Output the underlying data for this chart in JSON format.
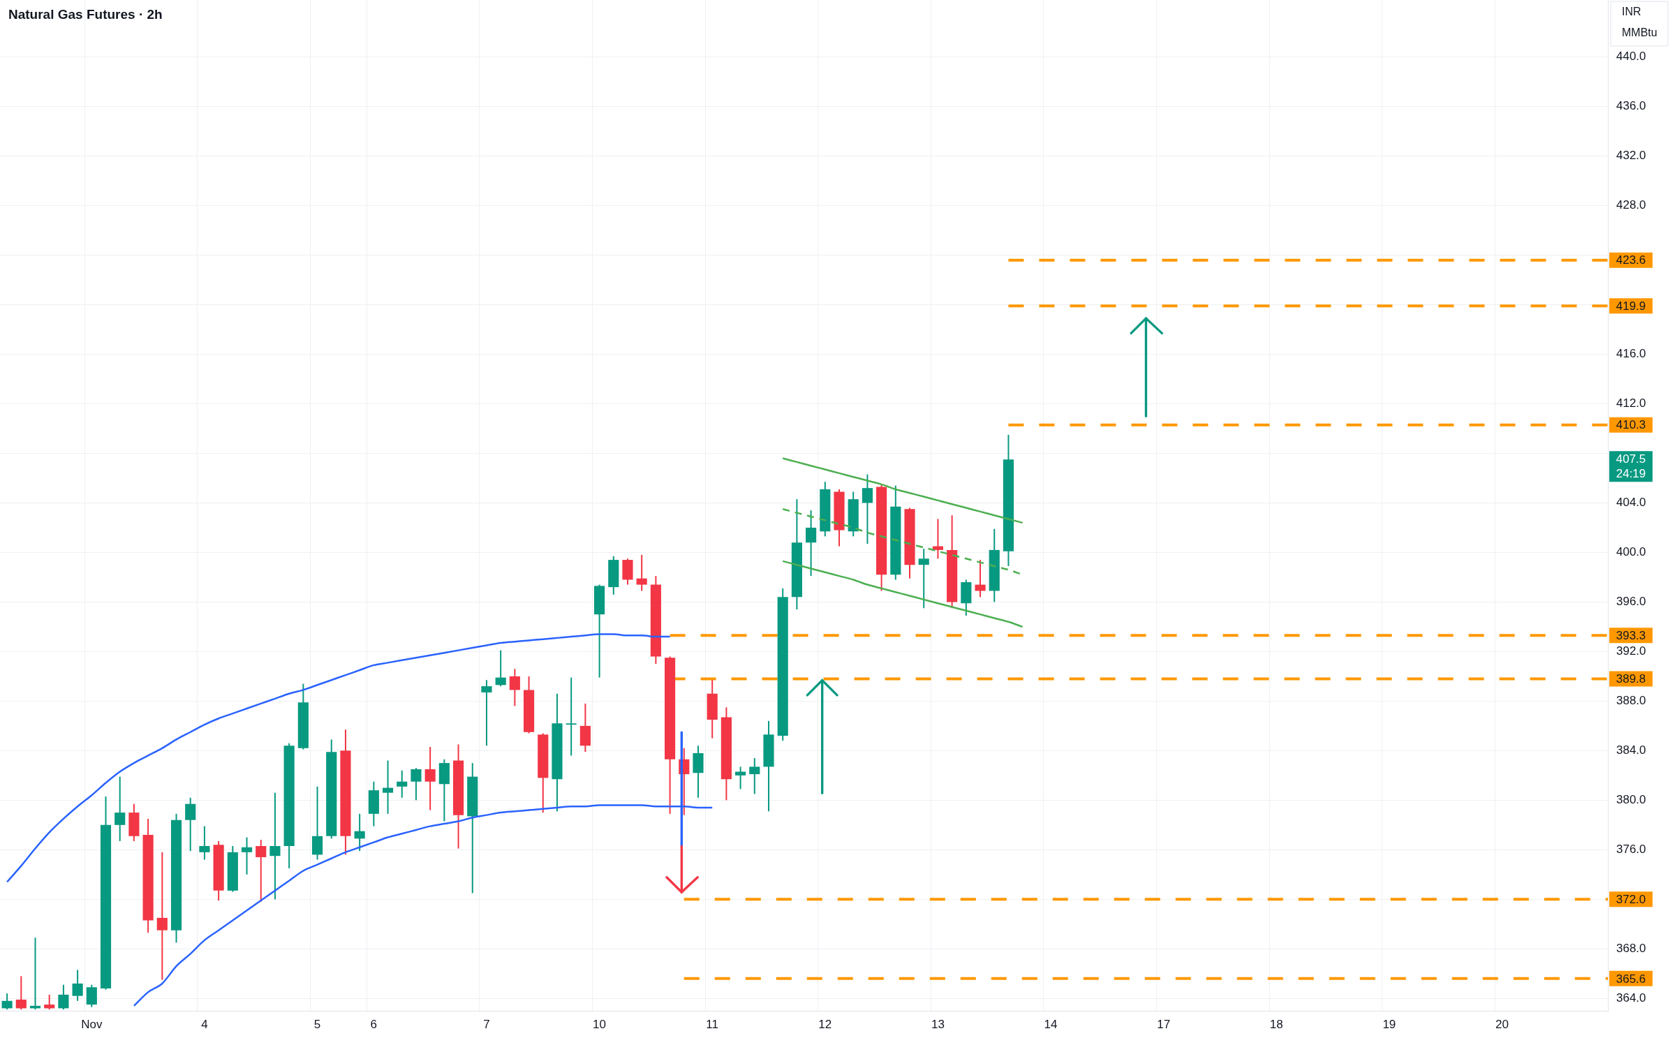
{
  "chart_data": {
    "type": "candlestick",
    "title": "Natural Gas Futures · 2h",
    "categories": [
      null,
      null,
      null,
      null,
      null,
      null,
      "Nov",
      null,
      null,
      null,
      null,
      null,
      null,
      null,
      "4",
      null,
      null,
      null,
      null,
      null,
      null,
      null,
      "5",
      null,
      null,
      null,
      "6",
      null,
      null,
      null,
      null,
      null,
      null,
      null,
      "7",
      null,
      null,
      null,
      null,
      null,
      null,
      null,
      "10",
      null,
      null,
      null,
      null,
      null,
      null,
      null,
      "11",
      null,
      null,
      null,
      null,
      null,
      null,
      null,
      "12",
      null,
      null,
      null,
      null,
      null,
      null,
      null,
      "13",
      null,
      null,
      null,
      null,
      null,
      null,
      null,
      "14",
      null,
      null,
      null,
      null,
      null,
      null,
      null,
      "17",
      null,
      null,
      null,
      null,
      null,
      null,
      null,
      "18",
      null,
      null,
      null,
      null,
      null,
      null,
      null,
      "19",
      null,
      null,
      null,
      null,
      null,
      null,
      null,
      "20",
      null,
      null,
      null,
      null,
      null,
      null,
      null
    ],
    "ohlc": [
      [
        363.2,
        364.4,
        363.1,
        363.8
      ],
      [
        363.9,
        365.8,
        363.1,
        363.2
      ],
      [
        363.2,
        368.9,
        363.1,
        363.4
      ],
      [
        363.5,
        364.3,
        363.1,
        363.2
      ],
      [
        363.2,
        365.1,
        363.1,
        364.3
      ],
      [
        364.2,
        366.3,
        363.8,
        365.2
      ],
      [
        363.5,
        365.1,
        363.3,
        364.9
      ],
      [
        364.8,
        380.3,
        364.7,
        378.0
      ],
      [
        378.0,
        381.9,
        376.7,
        379.0
      ],
      [
        379.0,
        379.7,
        376.7,
        377.1
      ],
      [
        377.2,
        378.5,
        369.3,
        370.3
      ],
      [
        370.5,
        375.8,
        365.5,
        369.5
      ],
      [
        369.5,
        378.9,
        368.5,
        378.4
      ],
      [
        378.4,
        380.2,
        375.9,
        379.7
      ],
      [
        375.8,
        377.9,
        375.2,
        376.3
      ],
      [
        376.4,
        376.7,
        371.9,
        372.7
      ],
      [
        372.7,
        376.3,
        372.6,
        375.8
      ],
      [
        375.8,
        377.0,
        374.0,
        376.2
      ],
      [
        376.3,
        376.8,
        371.8,
        375.4
      ],
      [
        375.5,
        380.6,
        372.0,
        376.3
      ],
      [
        376.3,
        384.6,
        374.5,
        384.4
      ],
      [
        384.2,
        389.4,
        384.1,
        387.9
      ],
      [
        375.6,
        381.1,
        375.2,
        377.1
      ],
      [
        377.1,
        384.9,
        376.9,
        383.9
      ],
      [
        384.0,
        385.7,
        375.6,
        377.1
      ],
      [
        376.9,
        378.9,
        375.9,
        377.5
      ],
      [
        378.9,
        381.5,
        377.9,
        380.8
      ],
      [
        380.6,
        383.2,
        378.9,
        381.0
      ],
      [
        381.1,
        382.4,
        380.2,
        381.5
      ],
      [
        381.5,
        382.6,
        380.0,
        382.5
      ],
      [
        382.5,
        384.3,
        379.2,
        381.5
      ],
      [
        381.3,
        383.3,
        378.3,
        383.0
      ],
      [
        383.2,
        384.5,
        376.1,
        378.8
      ],
      [
        378.7,
        383.0,
        372.5,
        381.9
      ],
      [
        388.7,
        389.7,
        384.4,
        389.2
      ],
      [
        389.3,
        392.1,
        389.2,
        389.9
      ],
      [
        390.0,
        390.6,
        387.6,
        388.9
      ],
      [
        388.9,
        390.0,
        385.4,
        385.5
      ],
      [
        385.3,
        385.4,
        379.0,
        381.8
      ],
      [
        381.7,
        388.6,
        379.1,
        386.2
      ],
      [
        386.1,
        389.9,
        383.6,
        386.2
      ],
      [
        386.0,
        387.8,
        383.9,
        384.4
      ],
      [
        395.0,
        397.4,
        389.9,
        397.3
      ],
      [
        397.2,
        399.7,
        396.6,
        399.4
      ],
      [
        399.4,
        399.5,
        397.4,
        397.8
      ],
      [
        397.9,
        399.8,
        396.9,
        397.4
      ],
      [
        397.4,
        398.1,
        391.0,
        391.6
      ],
      [
        391.5,
        391.6,
        378.9,
        383.3
      ],
      [
        383.3,
        384.2,
        378.8,
        382.1
      ],
      [
        382.2,
        384.4,
        380.2,
        383.8
      ],
      [
        388.6,
        389.7,
        385.0,
        386.5
      ],
      [
        386.7,
        387.5,
        380.0,
        381.7
      ],
      [
        382.0,
        382.7,
        380.9,
        382.3
      ],
      [
        382.1,
        383.4,
        380.5,
        382.7
      ],
      [
        382.7,
        386.4,
        379.1,
        385.3
      ],
      [
        385.2,
        397.1,
        384.8,
        396.4
      ],
      [
        396.4,
        404.3,
        395.4,
        400.8
      ],
      [
        400.8,
        403.4,
        398.1,
        402.0
      ],
      [
        401.7,
        405.7,
        401.3,
        405.1
      ],
      [
        404.9,
        405.1,
        400.5,
        401.8
      ],
      [
        401.7,
        404.9,
        401.3,
        404.3
      ],
      [
        404.0,
        406.3,
        400.7,
        405.2
      ],
      [
        405.3,
        405.5,
        396.9,
        398.2
      ],
      [
        398.2,
        405.4,
        397.8,
        403.7
      ],
      [
        403.5,
        403.6,
        397.9,
        399.0
      ],
      [
        399.0,
        400.3,
        395.5,
        399.5
      ],
      [
        400.5,
        402.7,
        399.5,
        400.2
      ],
      [
        400.2,
        403.0,
        395.5,
        396.0
      ],
      [
        395.9,
        397.8,
        394.9,
        397.6
      ],
      [
        397.4,
        399.4,
        396.4,
        396.9
      ],
      [
        396.9,
        401.9,
        396.0,
        400.2
      ],
      [
        400.1,
        409.5,
        398.9,
        407.5
      ],
      null,
      null,
      null,
      null,
      null,
      null,
      null,
      null,
      null,
      null,
      null,
      null,
      null,
      null,
      null,
      null,
      null,
      null,
      null,
      null,
      null,
      null,
      null,
      null,
      null,
      null,
      null,
      null,
      null,
      null,
      null,
      null,
      null,
      null,
      null,
      null,
      null,
      null,
      null,
      null,
      null,
      null
    ],
    "colors": [
      "#089981",
      "#f23645",
      "#089981",
      "#f23645",
      "#089981",
      "#089981",
      "#089981",
      "#089981",
      "#089981",
      "#f23645",
      "#f23645",
      "#f23645",
      "#089981",
      "#089981",
      "#089981",
      "#f23645",
      "#089981",
      "#089981",
      "#f23645",
      "#089981",
      "#089981",
      "#089981",
      "#089981",
      "#089981",
      "#f23645",
      "#089981",
      "#089981",
      "#089981",
      "#089981",
      "#089981",
      "#f23645",
      "#089981",
      "#f23645",
      "#089981",
      "#089981",
      "#089981",
      "#f23645",
      "#f23645",
      "#f23645",
      "#089981",
      "#089981",
      "#f23645",
      "#089981",
      "#089981",
      "#f23645",
      "#f23645",
      "#f23645",
      "#f23645",
      "#f23645",
      "#089981",
      "#f23645",
      "#f23645",
      "#089981",
      "#089981",
      "#089981",
      "#089981",
      "#089981",
      "#089981",
      "#089981",
      "#f23645",
      "#089981",
      "#089981",
      "#f23645",
      "#089981",
      "#f23645",
      "#089981",
      "#f23645",
      "#f23645",
      "#089981",
      "#f23645",
      "#089981",
      "#089981",
      null,
      null,
      null,
      null,
      null,
      null,
      null,
      null,
      null,
      null,
      null,
      null,
      null,
      null,
      null,
      null,
      null,
      null,
      null,
      null,
      null,
      null,
      null,
      null,
      null,
      null,
      null,
      null,
      null,
      null,
      null,
      null,
      null,
      null,
      null,
      null,
      null,
      null,
      null,
      null,
      null,
      null
    ],
    "series": [
      {
        "type": "line",
        "color": "#2962ff",
        "values": [
          373.4,
          374.7,
          376.1,
          377.4,
          378.5,
          379.5,
          380.4,
          381.4,
          382.3,
          383.0,
          383.6,
          384.2,
          384.9,
          385.5,
          386.1,
          386.6,
          387.0,
          387.4,
          387.8,
          388.2,
          388.6,
          388.9,
          389.3,
          389.7,
          390.1,
          390.5,
          390.9,
          391.1,
          391.3,
          391.5,
          391.7,
          391.9,
          392.1,
          392.3,
          392.5,
          392.7,
          392.8,
          392.9,
          393.0,
          393.1,
          393.2,
          393.3,
          393.4,
          393.4,
          393.3,
          393.3,
          393.2,
          393.2,
          null,
          null,
          null,
          null,
          null,
          null,
          null,
          null,
          null,
          null,
          null,
          null,
          null,
          null,
          null,
          null,
          null,
          null,
          null,
          null,
          null,
          null,
          null,
          null,
          null,
          null,
          null,
          null,
          null,
          null,
          null,
          null,
          null,
          null,
          null,
          null,
          null,
          null,
          null,
          null,
          null,
          null,
          null,
          null,
          null,
          null,
          null,
          null,
          null,
          null,
          null,
          null,
          null,
          null,
          null,
          null,
          null,
          null,
          null,
          null,
          null,
          null,
          null,
          null,
          null,
          null
        ]
      },
      {
        "type": "line",
        "color": "#2962ff",
        "values": [
          null,
          null,
          null,
          null,
          null,
          null,
          null,
          null,
          null,
          363.4,
          364.5,
          365.2,
          366.6,
          367.6,
          368.7,
          369.5,
          370.3,
          371.1,
          371.9,
          372.7,
          373.5,
          374.3,
          374.8,
          375.3,
          375.8,
          376.2,
          376.6,
          377.0,
          377.3,
          377.6,
          377.9,
          378.1,
          378.3,
          378.6,
          378.8,
          379.0,
          379.1,
          379.2,
          379.3,
          379.4,
          379.5,
          379.5,
          379.6,
          379.6,
          379.6,
          379.6,
          379.5,
          379.5,
          379.5,
          379.4,
          379.4,
          null,
          null,
          null,
          null,
          null,
          null,
          null,
          null,
          null,
          null,
          null,
          null,
          null,
          null,
          null,
          null,
          null,
          null,
          null,
          null,
          null,
          null,
          null,
          null,
          null,
          null,
          null,
          null,
          null,
          null,
          null,
          null,
          null,
          null,
          null,
          null,
          null,
          null,
          null,
          null,
          null,
          null,
          null,
          null,
          null,
          null,
          null,
          null,
          null,
          null,
          null,
          null,
          null,
          null,
          null,
          null,
          null,
          null,
          null,
          null,
          null,
          null,
          null
        ]
      },
      {
        "type": "line",
        "color": "#4caf50",
        "values": [
          null,
          null,
          null,
          null,
          null,
          null,
          null,
          null,
          null,
          null,
          null,
          null,
          null,
          null,
          null,
          null,
          null,
          null,
          null,
          null,
          null,
          null,
          null,
          null,
          null,
          null,
          null,
          null,
          null,
          null,
          null,
          null,
          null,
          null,
          null,
          null,
          null,
          null,
          null,
          null,
          null,
          null,
          null,
          null,
          null,
          null,
          null,
          null,
          null,
          null,
          null,
          null,
          null,
          null,
          null,
          407.6,
          407.3,
          407.0,
          406.7,
          406.4,
          406.1,
          405.8,
          405.5,
          405.1,
          404.8,
          404.5,
          404.2,
          403.9,
          403.6,
          403.3,
          403.0,
          402.7,
          402.4,
          null,
          null,
          null,
          null,
          null,
          null,
          null,
          null,
          null,
          null,
          null,
          null,
          null,
          null,
          null,
          null,
          null,
          null,
          null,
          null,
          null,
          null,
          null,
          null,
          null,
          null,
          null,
          null,
          null,
          null,
          null,
          null,
          null,
          null,
          null,
          null,
          null,
          null,
          null,
          null,
          null
        ]
      },
      {
        "type": "line",
        "color": "#4caf50",
        "line_style": "dashed",
        "values": [
          null,
          null,
          null,
          null,
          null,
          null,
          null,
          null,
          null,
          null,
          null,
          null,
          null,
          null,
          null,
          null,
          null,
          null,
          null,
          null,
          null,
          null,
          null,
          null,
          null,
          null,
          null,
          null,
          null,
          null,
          null,
          null,
          null,
          null,
          null,
          null,
          null,
          null,
          null,
          null,
          null,
          null,
          null,
          null,
          null,
          null,
          null,
          null,
          null,
          null,
          null,
          null,
          null,
          null,
          null,
          403.5,
          403.2,
          402.9,
          402.6,
          402.3,
          402.0,
          401.6,
          401.3,
          401.0,
          400.7,
          400.4,
          400.1,
          399.8,
          399.5,
          399.2,
          398.9,
          398.6,
          398.2,
          null,
          null,
          null,
          null,
          null,
          null,
          null,
          null,
          null,
          null,
          null,
          null,
          null,
          null,
          null,
          null,
          null,
          null,
          null,
          null,
          null,
          null,
          null,
          null,
          null,
          null,
          null,
          null,
          null,
          null,
          null,
          null,
          null,
          null,
          null,
          null,
          null,
          null,
          null,
          null,
          null
        ]
      },
      {
        "type": "line",
        "color": "#4caf50",
        "values": [
          null,
          null,
          null,
          null,
          null,
          null,
          null,
          null,
          null,
          null,
          null,
          null,
          null,
          null,
          null,
          null,
          null,
          null,
          null,
          null,
          null,
          null,
          null,
          null,
          null,
          null,
          null,
          null,
          null,
          null,
          null,
          null,
          null,
          null,
          null,
          null,
          null,
          null,
          null,
          null,
          null,
          null,
          null,
          null,
          null,
          null,
          null,
          null,
          null,
          null,
          null,
          null,
          null,
          null,
          null,
          399.3,
          399.0,
          398.7,
          398.4,
          398.1,
          397.8,
          397.4,
          397.1,
          396.8,
          396.5,
          396.2,
          395.9,
          395.6,
          395.3,
          395.0,
          394.7,
          394.4,
          394.0,
          null,
          null,
          null,
          null,
          null,
          null,
          null,
          null,
          null,
          null,
          null,
          null,
          null,
          null,
          null,
          null,
          null,
          null,
          null,
          null,
          null,
          null,
          null,
          null,
          null,
          null,
          null,
          null,
          null,
          null,
          null,
          null,
          null,
          null,
          null,
          null,
          null,
          null,
          null,
          null,
          null
        ]
      }
    ],
    "ylim": [
      363,
      444.6
    ],
    "yticks": [
      {
        "value": 364,
        "label": "364.0"
      },
      {
        "value": 368,
        "label": "368.0"
      },
      {
        "value": 372,
        "label": null
      },
      {
        "value": 376,
        "label": "376.0"
      },
      {
        "value": 380,
        "label": "380.0"
      },
      {
        "value": 384,
        "label": "384.0"
      },
      {
        "value": 388,
        "label": "388.0"
      },
      {
        "value": 392,
        "label": "392.0"
      },
      {
        "value": 396,
        "label": "396.0"
      },
      {
        "value": 400,
        "label": "400.0"
      },
      {
        "value": 404,
        "label": "404.0"
      },
      {
        "value": 408,
        "label": null
      },
      {
        "value": 412,
        "label": "412.0"
      },
      {
        "value": 416,
        "label": "416.0"
      },
      {
        "value": 420,
        "label": null
      },
      {
        "value": 424,
        "label": null
      },
      {
        "value": 428,
        "label": "428.0"
      },
      {
        "value": 432,
        "label": "432.0"
      },
      {
        "value": 436,
        "label": "436.0"
      },
      {
        "value": 440,
        "label": "440.0"
      }
    ],
    "grid": true,
    "ref_lines": [
      {
        "axis": "y",
        "value": 423.6,
        "label": "423.6",
        "color": "#ff9800",
        "line_style": "dashed"
      },
      {
        "axis": "y",
        "value": 419.9,
        "label": "419.9",
        "color": "#ff9800",
        "line_style": "dashed"
      },
      {
        "axis": "y",
        "value": 410.3,
        "label": "410.3",
        "color": "#ff9800",
        "line_style": "dashed"
      },
      {
        "axis": "y",
        "value": 393.3,
        "label": "393.3",
        "color": "#ff9800",
        "line_style": "dashed"
      },
      {
        "axis": "y",
        "value": 389.8,
        "label": "389.8",
        "color": "#ff9800",
        "line_style": "dashed"
      },
      {
        "axis": "y",
        "value": 372.0,
        "label": "372.0",
        "color": "#ff9800",
        "line_style": "dashed"
      },
      {
        "axis": "y",
        "value": 365.6,
        "label": "365.6",
        "color": "#ff9800",
        "line_style": "dashed"
      }
    ],
    "annotations": [
      "407.5",
      "24:19",
      "INR",
      "MMBtu"
    ]
  }
}
